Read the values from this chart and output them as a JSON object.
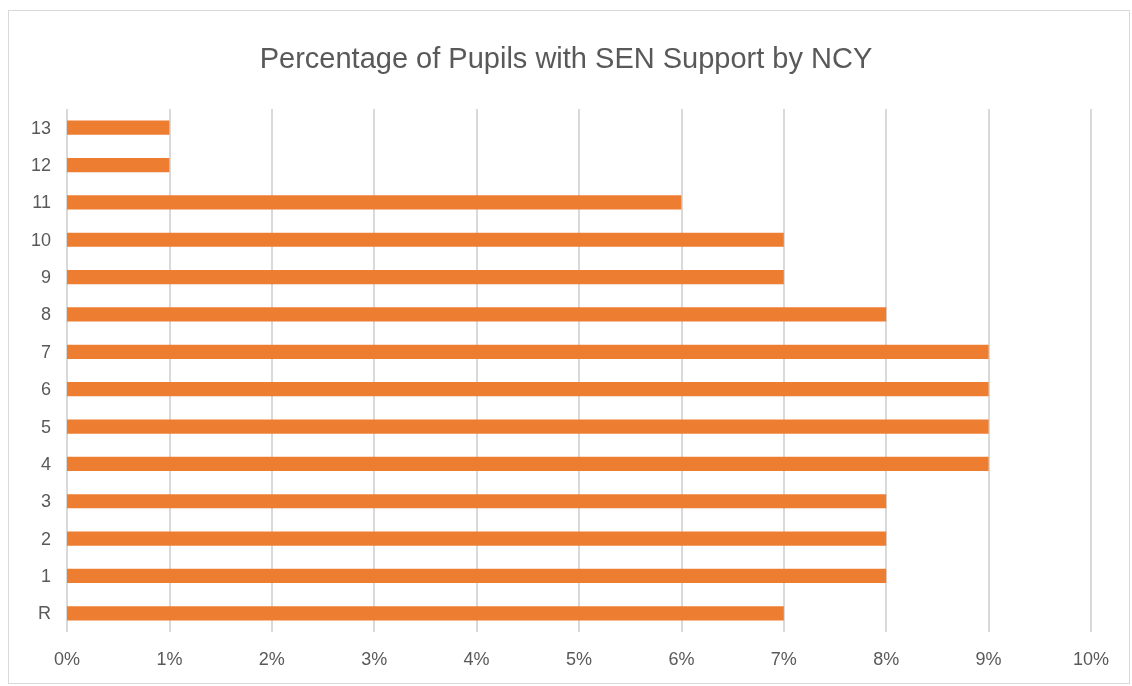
{
  "chart_data": {
    "type": "bar",
    "orientation": "horizontal",
    "title": "Percentage of Pupils with SEN Support by NCY",
    "categories": [
      "13",
      "12",
      "11",
      "10",
      "9",
      "8",
      "7",
      "6",
      "5",
      "4",
      "3",
      "2",
      "1",
      "R"
    ],
    "series": [
      {
        "color": "#ed7d31",
        "values": [
          1,
          1,
          6,
          7,
          7,
          8,
          9,
          9,
          9,
          9,
          8,
          8,
          8,
          7
        ]
      }
    ],
    "xlim": [
      0,
      10
    ],
    "xticks": [
      {
        "value": 0,
        "label": "0%"
      },
      {
        "value": 1,
        "label": "1%"
      },
      {
        "value": 2,
        "label": "2%"
      },
      {
        "value": 3,
        "label": "3%"
      },
      {
        "value": 4,
        "label": "4%"
      },
      {
        "value": 5,
        "label": "5%"
      },
      {
        "value": 6,
        "label": "6%"
      },
      {
        "value": 7,
        "label": "7%"
      },
      {
        "value": 8,
        "label": "8%"
      },
      {
        "value": 9,
        "label": "9%"
      },
      {
        "value": 10,
        "label": "10%"
      }
    ],
    "grid": "x"
  }
}
